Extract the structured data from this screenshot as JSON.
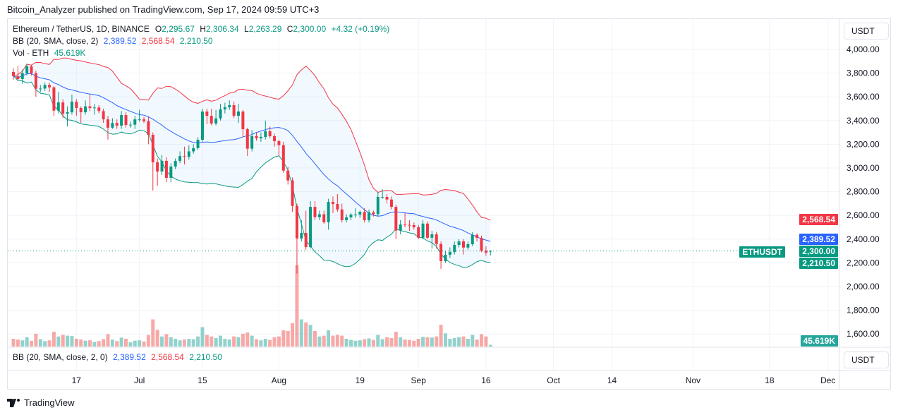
{
  "header": {
    "published": "Bitcoin_Analyzer published on TradingView.com, Sep 17, 2024 09:59 UTC+3"
  },
  "legend": {
    "symbol": "Ethereum / TetherUS, 1D, BINANCE",
    "o_label": "O",
    "o": "2,295.67",
    "h_label": "H",
    "h": "2,306.34",
    "l_label": "L",
    "l": "2,263.29",
    "c_label": "C",
    "c": "2,300.00",
    "change": "+4.32 (+0.19%)",
    "bb_label": "BB (20, SMA, close, 2)",
    "bb_basis": "2,389.52",
    "bb_upper": "2,568.54",
    "bb_lower": "2,210.50",
    "vol_label": "Vol · ETH",
    "vol": "45.619K"
  },
  "indicator_pane": {
    "label": "BB (20, SMA, close, 2, 0)",
    "basis": "2,389.52",
    "upper": "2,568.54",
    "lower": "2,210.50",
    "currency": "USDT"
  },
  "price_axis": {
    "currency": "USDT",
    "ticks": [
      "4,000.00",
      "3,800.00",
      "3,600.00",
      "3,400.00",
      "3,200.00",
      "3,000.00",
      "2,800.00",
      "2,600.00",
      "2,400.00",
      "2,200.00",
      "2,000.00",
      "1,800.00",
      "1,600.00"
    ],
    "symbol_tag": "ETHUSDT",
    "tags": {
      "upper": "2,568.54",
      "basis": "2,389.52",
      "last": "2,300.00",
      "lower": "2,210.50",
      "volume": "45.619K"
    }
  },
  "colors": {
    "up": "#089981",
    "down": "#f23645",
    "basis": "#2962ff",
    "upper": "#f23645",
    "lower": "#089981",
    "vol_up": "#26a69a",
    "vol_down": "#ef5350"
  },
  "footer": {
    "brand": "TradingView"
  },
  "chart_data": {
    "type": "candlestick",
    "symbol": "ETHUSDT",
    "interval": "1D",
    "first_date": "2024-06-03",
    "last_date": "2024-09-17",
    "ylim": [
      1600,
      4000
    ],
    "x_ticks": [
      {
        "label": "17",
        "date": "2024-06-17"
      },
      {
        "label": "Jul",
        "date": "2024-07-01"
      },
      {
        "label": "15",
        "date": "2024-07-15"
      },
      {
        "label": "Aug",
        "date": "2024-08-01"
      },
      {
        "label": "19",
        "date": "2024-08-19"
      },
      {
        "label": "Sep",
        "date": "2024-09-01"
      },
      {
        "label": "16",
        "date": "2024-09-16"
      },
      {
        "label": "Oct",
        "date": "2024-10-01"
      },
      {
        "label": "14",
        "date": "2024-10-14"
      },
      {
        "label": "Nov",
        "date": "2024-11-01"
      },
      {
        "label": "18",
        "date": "2024-11-18"
      },
      {
        "label": "Dec",
        "date": "2024-12-01"
      }
    ],
    "ohlc": [
      [
        3810,
        3840,
        3745,
        3775
      ],
      [
        3775,
        3860,
        3740,
        3750
      ],
      [
        3750,
        3830,
        3710,
        3800
      ],
      [
        3800,
        3880,
        3780,
        3857
      ],
      [
        3857,
        3870,
        3780,
        3800
      ],
      [
        3800,
        3820,
        3600,
        3668
      ],
      [
        3668,
        3700,
        3640,
        3670
      ],
      [
        3670,
        3720,
        3650,
        3700
      ],
      [
        3700,
        3720,
        3640,
        3680
      ],
      [
        3680,
        3690,
        3440,
        3484
      ],
      [
        3484,
        3640,
        3460,
        3553
      ],
      [
        3553,
        3580,
        3420,
        3458
      ],
      [
        3458,
        3520,
        3350,
        3470
      ],
      [
        3470,
        3620,
        3450,
        3559
      ],
      [
        3559,
        3580,
        3440,
        3506
      ],
      [
        3506,
        3520,
        3380,
        3470
      ],
      [
        3470,
        3570,
        3450,
        3520
      ],
      [
        3520,
        3620,
        3480,
        3505
      ],
      [
        3505,
        3540,
        3450,
        3510
      ],
      [
        3510,
        3530,
        3460,
        3480
      ],
      [
        3480,
        3500,
        3380,
        3410
      ],
      [
        3410,
        3440,
        3240,
        3340
      ],
      [
        3340,
        3420,
        3330,
        3380
      ],
      [
        3380,
        3410,
        3330,
        3357
      ],
      [
        3357,
        3480,
        3330,
        3446
      ],
      [
        3446,
        3470,
        3340,
        3363
      ],
      [
        3363,
        3390,
        3340,
        3365
      ],
      [
        3365,
        3440,
        3330,
        3410
      ],
      [
        3410,
        3490,
        3390,
        3410
      ],
      [
        3410,
        3430,
        3380,
        3395
      ],
      [
        3395,
        3430,
        3200,
        3280
      ],
      [
        3280,
        3300,
        2810,
        3048
      ],
      [
        3048,
        3080,
        2850,
        2970
      ],
      [
        2970,
        3110,
        2940,
        3060
      ],
      [
        3060,
        3090,
        2880,
        2917
      ],
      [
        2917,
        3040,
        2880,
        3012
      ],
      [
        3012,
        3080,
        2990,
        3060
      ],
      [
        3060,
        3140,
        3040,
        3100
      ],
      [
        3100,
        3180,
        3030,
        3095
      ],
      [
        3095,
        3190,
        3070,
        3140
      ],
      [
        3140,
        3200,
        3120,
        3167
      ],
      [
        3167,
        3260,
        3150,
        3238
      ],
      [
        3238,
        3500,
        3220,
        3476
      ],
      [
        3476,
        3500,
        3370,
        3440
      ],
      [
        3440,
        3500,
        3360,
        3375
      ],
      [
        3375,
        3490,
        3360,
        3418
      ],
      [
        3418,
        3540,
        3400,
        3494
      ],
      [
        3494,
        3550,
        3460,
        3512
      ],
      [
        3512,
        3570,
        3490,
        3530
      ],
      [
        3530,
        3560,
        3420,
        3440
      ],
      [
        3440,
        3540,
        3380,
        3476
      ],
      [
        3476,
        3490,
        3260,
        3327
      ],
      [
        3327,
        3340,
        3100,
        3163
      ],
      [
        3163,
        3320,
        3140,
        3268
      ],
      [
        3268,
        3300,
        3230,
        3250
      ],
      [
        3250,
        3300,
        3220,
        3262
      ],
      [
        3262,
        3400,
        3240,
        3310
      ],
      [
        3310,
        3350,
        3250,
        3268
      ],
      [
        3268,
        3290,
        3180,
        3226
      ],
      [
        3226,
        3240,
        3100,
        3192
      ],
      [
        3192,
        3220,
        2960,
        2978
      ],
      [
        2978,
        3010,
        2860,
        2895
      ],
      [
        2895,
        2920,
        2630,
        2680
      ],
      [
        2680,
        2700,
        2110,
        2406
      ],
      [
        2406,
        2560,
        2380,
        2452
      ],
      [
        2452,
        2640,
        2310,
        2333
      ],
      [
        2333,
        2720,
        2320,
        2672
      ],
      [
        2672,
        2720,
        2560,
        2585
      ],
      [
        2585,
        2640,
        2560,
        2610
      ],
      [
        2610,
        2640,
        2530,
        2542
      ],
      [
        2542,
        2740,
        2480,
        2714
      ],
      [
        2714,
        2760,
        2620,
        2696
      ],
      [
        2696,
        2780,
        2630,
        2650
      ],
      [
        2650,
        2700,
        2540,
        2560
      ],
      [
        2560,
        2610,
        2540,
        2583
      ],
      [
        2583,
        2620,
        2560,
        2607
      ],
      [
        2607,
        2660,
        2580,
        2607
      ],
      [
        2607,
        2640,
        2580,
        2630
      ],
      [
        2630,
        2660,
        2540,
        2560
      ],
      [
        2560,
        2650,
        2540,
        2626
      ],
      [
        2626,
        2640,
        2590,
        2610
      ],
      [
        2610,
        2800,
        2590,
        2756
      ],
      [
        2756,
        2820,
        2740,
        2756
      ],
      [
        2756,
        2780,
        2700,
        2734
      ],
      [
        2734,
        2760,
        2650,
        2672
      ],
      [
        2672,
        2690,
        2400,
        2472
      ],
      [
        2472,
        2560,
        2440,
        2523
      ],
      [
        2523,
        2620,
        2500,
        2520
      ],
      [
        2520,
        2560,
        2470,
        2518
      ],
      [
        2518,
        2540,
        2480,
        2500
      ],
      [
        2500,
        2520,
        2400,
        2412
      ],
      [
        2412,
        2560,
        2400,
        2531
      ],
      [
        2531,
        2550,
        2400,
        2412
      ],
      [
        2412,
        2470,
        2320,
        2440
      ],
      [
        2440,
        2460,
        2320,
        2359
      ],
      [
        2359,
        2380,
        2150,
        2214
      ],
      [
        2214,
        2300,
        2200,
        2268
      ],
      [
        2268,
        2330,
        2240,
        2292
      ],
      [
        2292,
        2380,
        2270,
        2351
      ],
      [
        2351,
        2400,
        2330,
        2381
      ],
      [
        2381,
        2400,
        2270,
        2329
      ],
      [
        2329,
        2380,
        2310,
        2357
      ],
      [
        2357,
        2460,
        2340,
        2436
      ],
      [
        2436,
        2450,
        2380,
        2411
      ],
      [
        2411,
        2430,
        2290,
        2303
      ],
      [
        2303,
        2340,
        2260,
        2285
      ],
      [
        2295.67,
        2306.34,
        2263.29,
        2300
      ]
    ],
    "volume_k": [
      200,
      180,
      160,
      240,
      150,
      330,
      190,
      140,
      160,
      380,
      260,
      300,
      280,
      270,
      200,
      180,
      150,
      160,
      120,
      140,
      190,
      320,
      180,
      140,
      230,
      200,
      110,
      150,
      160,
      130,
      300,
      700,
      430,
      260,
      320,
      240,
      200,
      160,
      180,
      200,
      190,
      260,
      500,
      300,
      260,
      220,
      280,
      200,
      180,
      260,
      240,
      330,
      360,
      280,
      190,
      160,
      200,
      170,
      240,
      260,
      420,
      400,
      600,
      2100,
      700,
      620,
      560,
      400,
      260,
      280,
      420,
      280,
      300,
      280,
      200,
      170,
      150,
      160,
      190,
      210,
      170,
      300,
      190,
      240,
      220,
      380,
      240,
      180,
      170,
      150,
      200,
      250,
      240,
      230,
      260,
      560,
      340,
      200,
      220,
      240,
      260,
      200,
      300,
      180,
      320,
      260,
      45.619
    ]
  }
}
